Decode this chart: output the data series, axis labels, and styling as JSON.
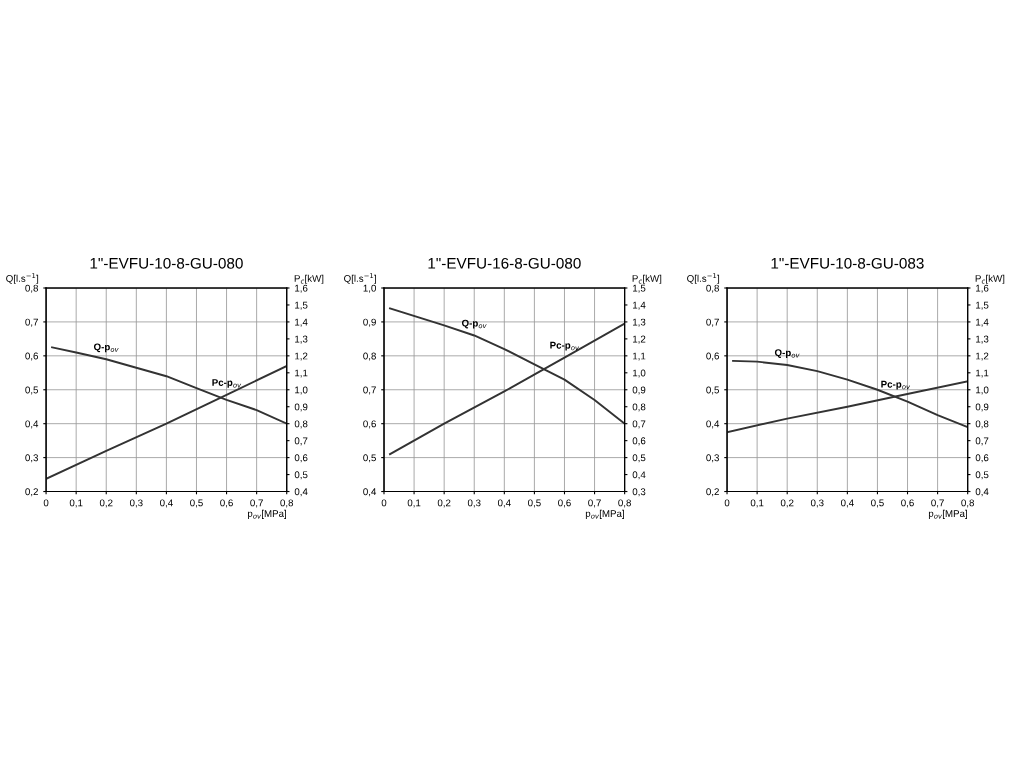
{
  "chart_data": [
    {
      "type": "line",
      "title": "1\"-EVFU-10-8-GU-080",
      "xlabel": "p$_{ov}$[MPa]",
      "ylabel": "Q[l.s$^{−1}$]",
      "y2label": "P$_{c}$[kW]",
      "xlim": [
        0,
        0.8
      ],
      "xticks": [
        0,
        {
          "value": 0.1,
          "label": "0,1"
        },
        {
          "value": 0.2,
          "label": "0,2"
        },
        {
          "value": 0.3,
          "label": "0,3"
        },
        {
          "value": 0.4,
          "label": "0,4"
        },
        {
          "value": 0.5,
          "label": "0,5"
        },
        {
          "value": 0.6,
          "label": "0,6"
        },
        {
          "value": 0.7,
          "label": "0,7"
        },
        {
          "value": 0.8,
          "label": "0,8"
        }
      ],
      "ylim": [
        0.2,
        0.8
      ],
      "yticks": [
        {
          "value": 0.2,
          "label": "0,2"
        },
        {
          "value": 0.3,
          "label": "0,3"
        },
        {
          "value": 0.4,
          "label": "0,4"
        },
        {
          "value": 0.5,
          "label": "0,5"
        },
        {
          "value": 0.6,
          "label": "0,6"
        },
        {
          "value": 0.7,
          "label": "0,7"
        },
        {
          "value": 0.8,
          "label": "0,8"
        }
      ],
      "y2lim": [
        0.4,
        1.6
      ],
      "y2ticks": [
        {
          "value": 0.4,
          "label": "0,4"
        },
        {
          "value": 0.5,
          "label": "0,5"
        },
        {
          "value": 0.6,
          "label": "0,6"
        },
        {
          "value": 0.7,
          "label": "0,7"
        },
        {
          "value": 0.8,
          "label": "0,8"
        },
        {
          "value": 0.9,
          "label": "0,9"
        },
        {
          "value": 1.0,
          "label": "1,0"
        },
        {
          "value": 1.1,
          "label": "1,1"
        },
        {
          "value": 1.2,
          "label": "1,2"
        },
        {
          "value": 1.3,
          "label": "1,3"
        },
        {
          "value": 1.4,
          "label": "1,4"
        },
        {
          "value": 1.5,
          "label": "1,5"
        },
        {
          "value": 1.6,
          "label": "1,6"
        }
      ],
      "grid": true,
      "legend": false,
      "marker": "none",
      "line_style": "solid",
      "series": [
        {
          "name": "Q-p$_{ov}$",
          "color": "#333333",
          "x": [
            0.02,
            0.1,
            0.2,
            0.3,
            0.4,
            0.5,
            0.6,
            0.7,
            0.8
          ],
          "values": [
            0.625,
            0.61,
            0.59,
            0.565,
            0.54,
            0.505,
            0.47,
            0.44,
            0.4
          ]
        },
        {
          "name": "Pc-p$_{ov}$",
          "color": "#333333",
          "axis": "y2",
          "x": [
            0,
            0.2,
            0.4,
            0.6,
            0.8
          ],
          "values": [
            0.475,
            0.64,
            0.8,
            0.97,
            1.14
          ]
        }
      ]
    },
    {
      "type": "line",
      "title": "1\"-EVFU-16-8-GU-080",
      "xlabel": "p$_{ov}$[MPa]",
      "ylabel": "Q[l.s$^{−1}$]",
      "y2label": "P$_{c}$[kW]",
      "xlim": [
        0,
        0.8
      ],
      "xticks": [
        0,
        {
          "value": 0.1,
          "label": "0,1"
        },
        {
          "value": 0.2,
          "label": "0,2"
        },
        {
          "value": 0.3,
          "label": "0,3"
        },
        {
          "value": 0.4,
          "label": "0,4"
        },
        {
          "value": 0.5,
          "label": "0,5"
        },
        {
          "value": 0.6,
          "label": "0,6"
        },
        {
          "value": 0.7,
          "label": "0,7"
        },
        {
          "value": 0.8,
          "label": "0,8"
        }
      ],
      "ylim": [
        0.4,
        1.0
      ],
      "yticks": [
        {
          "value": 0.4,
          "label": "0,4"
        },
        {
          "value": 0.5,
          "label": "0,5"
        },
        {
          "value": 0.6,
          "label": "0,6"
        },
        {
          "value": 0.7,
          "label": "0,7"
        },
        {
          "value": 0.8,
          "label": "0,8"
        },
        {
          "value": 0.9,
          "label": "0,9"
        },
        {
          "value": 1.0,
          "label": "1,0"
        }
      ],
      "y2lim": [
        0.3,
        1.5
      ],
      "y2ticks": [
        {
          "value": 0.3,
          "label": "0,3"
        },
        {
          "value": 0.4,
          "label": "0,4"
        },
        {
          "value": 0.5,
          "label": "0,5"
        },
        {
          "value": 0.6,
          "label": "0,6"
        },
        {
          "value": 0.7,
          "label": "0,7"
        },
        {
          "value": 0.8,
          "label": "0,8"
        },
        {
          "value": 0.9,
          "label": "0,9"
        },
        {
          "value": 1.0,
          "label": "1,0"
        },
        {
          "value": 1.1,
          "label": "1,1"
        },
        {
          "value": 1.2,
          "label": "1,2"
        },
        {
          "value": 1.3,
          "label": "1,3"
        },
        {
          "value": 1.4,
          "label": "1,4"
        },
        {
          "value": 1.5,
          "label": "1,5"
        }
      ],
      "grid": true,
      "legend": false,
      "marker": "none",
      "line_style": "solid",
      "series": [
        {
          "name": "Q-p$_{ov}$",
          "color": "#333333",
          "x": [
            0.02,
            0.2,
            0.3,
            0.4,
            0.5,
            0.6,
            0.7,
            0.8
          ],
          "values": [
            0.94,
            0.89,
            0.86,
            0.82,
            0.775,
            0.73,
            0.67,
            0.6
          ]
        },
        {
          "name": "Pc-p$_{ov}$",
          "color": "#333333",
          "axis": "y2",
          "x": [
            0.02,
            0.2,
            0.4,
            0.52,
            0.6,
            0.8
          ],
          "values": [
            0.52,
            0.7,
            0.89,
            1.01,
            1.09,
            1.29
          ]
        }
      ]
    },
    {
      "type": "line",
      "title": "1\"-EVFU-10-8-GU-083",
      "xlabel": "p$_{ov}$[MPa]",
      "ylabel": "Q[l.s$^{−1}$]",
      "y2label": "P$_{c}$[kW]",
      "xlim": [
        0,
        0.8
      ],
      "xticks": [
        0,
        {
          "value": 0.1,
          "label": "0,1"
        },
        {
          "value": 0.2,
          "label": "0,2"
        },
        {
          "value": 0.3,
          "label": "0,3"
        },
        {
          "value": 0.4,
          "label": "0,4"
        },
        {
          "value": 0.5,
          "label": "0,5"
        },
        {
          "value": 0.6,
          "label": "0,6"
        },
        {
          "value": 0.7,
          "label": "0,7"
        },
        {
          "value": 0.8,
          "label": "0,8"
        }
      ],
      "ylim": [
        0.2,
        0.8
      ],
      "yticks": [
        {
          "value": 0.2,
          "label": "0,2"
        },
        {
          "value": 0.3,
          "label": "0,3"
        },
        {
          "value": 0.4,
          "label": "0,4"
        },
        {
          "value": 0.5,
          "label": "0,5"
        },
        {
          "value": 0.6,
          "label": "0,6"
        },
        {
          "value": 0.7,
          "label": "0,7"
        },
        {
          "value": 0.8,
          "label": "0,8"
        }
      ],
      "y2lim": [
        0.4,
        1.6
      ],
      "y2ticks": [
        {
          "value": 0.4,
          "label": "0,4"
        },
        {
          "value": 0.5,
          "label": "0,5"
        },
        {
          "value": 0.6,
          "label": "0,6"
        },
        {
          "value": 0.7,
          "label": "0,7"
        },
        {
          "value": 0.8,
          "label": "0,8"
        },
        {
          "value": 0.9,
          "label": "0,9"
        },
        {
          "value": 1.0,
          "label": "1,0"
        },
        {
          "value": 1.1,
          "label": "1,1"
        },
        {
          "value": 1.2,
          "label": "1,2"
        },
        {
          "value": 1.3,
          "label": "1,3"
        },
        {
          "value": 1.4,
          "label": "1,4"
        },
        {
          "value": 1.5,
          "label": "1,5"
        },
        {
          "value": 1.6,
          "label": "1,6"
        }
      ],
      "grid": true,
      "legend": false,
      "marker": "none",
      "line_style": "solid",
      "series": [
        {
          "name": "Q-p$_{ov}$",
          "color": "#333333",
          "x": [
            0.02,
            0.1,
            0.2,
            0.3,
            0.4,
            0.5,
            0.6,
            0.7,
            0.8
          ],
          "values": [
            0.585,
            0.583,
            0.573,
            0.555,
            0.53,
            0.5,
            0.465,
            0.425,
            0.39
          ]
        },
        {
          "name": "Pc-p$_{ov}$",
          "color": "#333333",
          "axis": "y2",
          "x": [
            0,
            0.2,
            0.4,
            0.56,
            0.8
          ],
          "values": [
            0.75,
            0.83,
            0.9,
            0.96,
            1.05
          ]
        }
      ]
    }
  ]
}
